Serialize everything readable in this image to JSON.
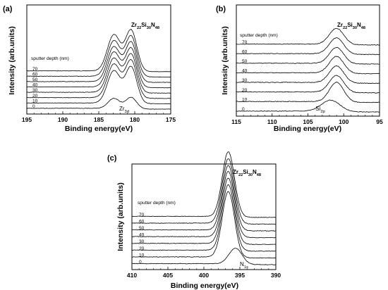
{
  "chart_data": [
    {
      "type": "line",
      "panel": "(a)",
      "sample": "Zr22Si30N48",
      "sample_parts": {
        "main": "Zr",
        "s1": "22",
        "m2": "Si",
        "s2": "30",
        "m3": "N",
        "s3": "48"
      },
      "xlabel": "Binding energy(eV)",
      "ylabel": "Intensity (arb.units)",
      "xlim": [
        195,
        175
      ],
      "x_ticks": [
        "195",
        "190",
        "185",
        "180",
        "175"
      ],
      "legend_title": "sputter depth (nm)",
      "peak_label": {
        "main": "Zr",
        "sub": "3d"
      },
      "series": [
        {
          "name": "0",
          "offset": 0,
          "peaks": [
            {
              "x": 182.9,
              "y": 1.5,
              "w": 0.8
            },
            {
              "x": 180.5,
              "y": 1.7,
              "w": 0.75
            }
          ]
        },
        {
          "name": "10",
          "offset": 1,
          "peaks": [
            {
              "x": 182.9,
              "y": 4.8,
              "w": 0.9
            },
            {
              "x": 180.5,
              "y": 5.4,
              "w": 0.8
            }
          ]
        },
        {
          "name": "20",
          "offset": 2,
          "peaks": [
            {
              "x": 182.9,
              "y": 5.0,
              "w": 0.9
            },
            {
              "x": 180.5,
              "y": 5.6,
              "w": 0.8
            }
          ]
        },
        {
          "name": "30",
          "offset": 3,
          "peaks": [
            {
              "x": 182.9,
              "y": 5.1,
              "w": 0.9
            },
            {
              "x": 180.5,
              "y": 5.7,
              "w": 0.8
            }
          ]
        },
        {
          "name": "40",
          "offset": 4,
          "peaks": [
            {
              "x": 182.9,
              "y": 5.2,
              "w": 0.9
            },
            {
              "x": 180.5,
              "y": 5.8,
              "w": 0.8
            }
          ]
        },
        {
          "name": "50",
          "offset": 5,
          "peaks": [
            {
              "x": 182.9,
              "y": 5.2,
              "w": 0.9
            },
            {
              "x": 180.5,
              "y": 5.9,
              "w": 0.8
            }
          ]
        },
        {
          "name": "60",
          "offset": 6,
          "peaks": [
            {
              "x": 182.9,
              "y": 5.3,
              "w": 0.9
            },
            {
              "x": 180.5,
              "y": 6.0,
              "w": 0.8
            }
          ]
        },
        {
          "name": "70",
          "offset": 7,
          "peaks": [
            {
              "x": 182.9,
              "y": 5.4,
              "w": 0.9
            },
            {
              "x": 180.5,
              "y": 6.1,
              "w": 0.8
            }
          ]
        }
      ]
    },
    {
      "type": "line",
      "panel": "(b)",
      "sample": "Zr22Si30N48",
      "sample_parts": {
        "main": "Zr",
        "s1": "22",
        "m2": "Si",
        "s2": "30",
        "m3": "N",
        "s3": "48"
      },
      "xlabel": "Binding energy(eV)",
      "ylabel": "Intensity (arb.units)",
      "xlim": [
        115,
        95
      ],
      "x_ticks": [
        "115",
        "110",
        "105",
        "100",
        "95"
      ],
      "legend_title": "sputter depth (nm)",
      "peak_label": {
        "main": "Si",
        "sub": "2p"
      },
      "series": [
        {
          "name": "0",
          "offset": 0,
          "peaks": [
            {
              "x": 101.8,
              "y": 1.6,
              "w": 1.3
            }
          ]
        },
        {
          "name": "10",
          "offset": 1,
          "peaks": [
            {
              "x": 101.0,
              "y": 2.8,
              "w": 1.0
            }
          ]
        },
        {
          "name": "20",
          "offset": 2,
          "peaks": [
            {
              "x": 101.0,
              "y": 2.4,
              "w": 1.0
            }
          ]
        },
        {
          "name": "30",
          "offset": 3,
          "peaks": [
            {
              "x": 101.0,
              "y": 2.4,
              "w": 1.0
            }
          ]
        },
        {
          "name": "40",
          "offset": 4,
          "peaks": [
            {
              "x": 101.0,
              "y": 2.4,
              "w": 1.0
            }
          ]
        },
        {
          "name": "50",
          "offset": 5,
          "peaks": [
            {
              "x": 101.0,
              "y": 2.3,
              "w": 1.0
            }
          ]
        },
        {
          "name": "60",
          "offset": 6,
          "peaks": [
            {
              "x": 101.0,
              "y": 2.3,
              "w": 1.0
            }
          ]
        },
        {
          "name": "70",
          "offset": 7,
          "peaks": [
            {
              "x": 101.0,
              "y": 2.3,
              "w": 1.0
            }
          ]
        }
      ]
    },
    {
      "type": "line",
      "panel": "(c)",
      "sample": "Zr22Si30N48",
      "sample_parts": {
        "main": "Zr",
        "s1": "22",
        "m2": "Si",
        "s2": "30",
        "m3": "N",
        "s3": "48"
      },
      "xlabel": "Binding energy(eV)",
      "ylabel": "Intensity (arb.units)",
      "xlim": [
        410,
        390
      ],
      "x_ticks": [
        "410",
        "405",
        "400",
        "395",
        "390"
      ],
      "legend_title": "sputter depth (nm)",
      "peak_label": {
        "main": "N",
        "sub": "1s"
      },
      "series": [
        {
          "name": "0",
          "offset": 0,
          "peaks": [
            {
              "x": 395.6,
              "y": 1.9,
              "w": 0.9
            }
          ]
        },
        {
          "name": "10",
          "offset": 1,
          "peaks": [
            {
              "x": 396.6,
              "y": 7.8,
              "w": 0.85
            }
          ]
        },
        {
          "name": "20",
          "offset": 2,
          "peaks": [
            {
              "x": 396.6,
              "y": 7.8,
              "w": 0.85
            }
          ]
        },
        {
          "name": "30",
          "offset": 3,
          "peaks": [
            {
              "x": 396.6,
              "y": 7.8,
              "w": 0.85
            }
          ]
        },
        {
          "name": "40",
          "offset": 4,
          "peaks": [
            {
              "x": 396.6,
              "y": 7.8,
              "w": 0.85
            }
          ]
        },
        {
          "name": "50",
          "offset": 5,
          "peaks": [
            {
              "x": 396.6,
              "y": 7.7,
              "w": 0.85
            }
          ]
        },
        {
          "name": "60",
          "offset": 6,
          "peaks": [
            {
              "x": 396.6,
              "y": 7.7,
              "w": 0.85
            }
          ]
        },
        {
          "name": "70",
          "offset": 7,
          "peaks": [
            {
              "x": 396.6,
              "y": 7.7,
              "w": 0.85
            }
          ]
        }
      ]
    }
  ]
}
